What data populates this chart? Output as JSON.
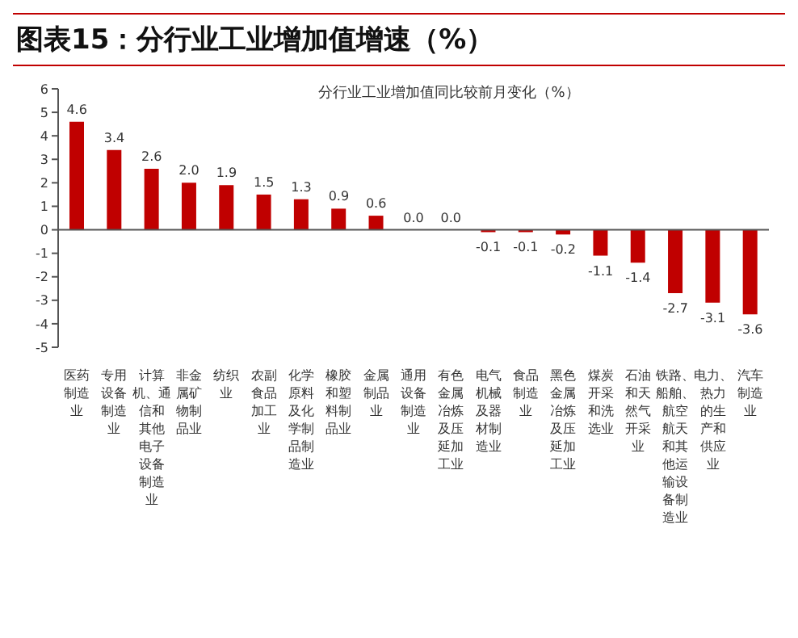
{
  "chart_data": {
    "type": "bar",
    "title": "图表15：分行业工业增加值增速（%）",
    "subtitle": "分行业工业增加值同比较前月变化（%）",
    "categories": [
      "医药制造业",
      "专用设备制造业",
      "计算机、通信和其他电子设备制造业",
      "非金属矿物制品业",
      "纺织业",
      "农副食品加工业",
      "化学原料及化学制品制造业",
      "橡胶和塑料制品业",
      "金属制品业",
      "通用设备制造业",
      "有色金属冶炼及压延加工业",
      "电气机械及器材制造业",
      "食品制造业",
      "黑色金属冶炼及压延加工业",
      "煤炭开采和洗选业",
      "石油和天然气开采业",
      "铁路、船舶、航空航天和其他运输设备制造业",
      "电力、热力的生产和供应业",
      "汽车制造业"
    ],
    "values": [
      4.6,
      3.4,
      2.6,
      2.0,
      1.9,
      1.5,
      1.3,
      0.9,
      0.6,
      0.0,
      0.0,
      -0.1,
      -0.1,
      -0.2,
      -1.1,
      -1.4,
      -2.7,
      -3.1,
      -3.6
    ],
    "value_labels": [
      "4.6",
      "3.4",
      "2.6",
      "2.0",
      "1.9",
      "1.5",
      "1.3",
      "0.9",
      "0.6",
      "0.0",
      "0.0",
      "-0.1",
      "-0.1",
      "-0.2",
      "-1.1",
      "-1.4",
      "-2.7",
      "-3.1",
      "-3.6"
    ],
    "color": "#c00000",
    "ylim": [
      -5,
      6
    ],
    "yticks": [
      -5,
      -4,
      -3,
      -2,
      -1,
      0,
      1,
      2,
      3,
      4,
      5,
      6
    ],
    "grid": false,
    "legend": false,
    "ref_lines": [
      {
        "axis": "y",
        "value": 0,
        "color": "#555555"
      }
    ]
  }
}
